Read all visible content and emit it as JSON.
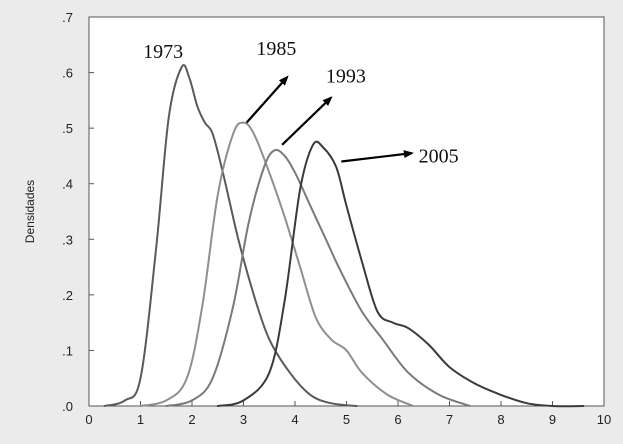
{
  "chart_data": {
    "type": "line",
    "title": "",
    "xlabel": "",
    "ylabel": "Densidades",
    "xlim": [
      0,
      10
    ],
    "ylim": [
      0,
      0.7
    ],
    "x_ticks": [
      "0",
      "1",
      "2",
      "3",
      "4",
      "5",
      "6",
      "7",
      "8",
      "9",
      "10"
    ],
    "y_ticks": [
      ".0",
      ".1",
      ".2",
      ".3",
      ".4",
      ".5",
      ".6",
      ".7"
    ],
    "grid": false,
    "legend": "none",
    "series": [
      {
        "name": "1973",
        "color": "#5a5a5a",
        "x": [
          0.3,
          0.7,
          1.0,
          1.3,
          1.55,
          1.8,
          1.95,
          2.1,
          2.25,
          2.4,
          2.6,
          2.9,
          3.2,
          3.5,
          3.9,
          4.3,
          4.7,
          5.2
        ],
        "y": [
          0.0,
          0.01,
          0.05,
          0.28,
          0.52,
          0.61,
          0.59,
          0.54,
          0.51,
          0.49,
          0.42,
          0.3,
          0.2,
          0.12,
          0.06,
          0.02,
          0.005,
          0.0
        ]
      },
      {
        "name": "1985",
        "color": "#8f8f8f",
        "x": [
          1.0,
          1.5,
          1.9,
          2.2,
          2.5,
          2.8,
          3.0,
          3.2,
          3.5,
          3.8,
          4.1,
          4.4,
          4.7,
          5.0,
          5.3,
          5.8,
          6.3
        ],
        "y": [
          0.0,
          0.01,
          0.05,
          0.18,
          0.38,
          0.49,
          0.51,
          0.49,
          0.42,
          0.34,
          0.25,
          0.16,
          0.12,
          0.1,
          0.06,
          0.02,
          0.0
        ]
      },
      {
        "name": "1993",
        "color": "#7a7a7a",
        "x": [
          1.5,
          2.0,
          2.4,
          2.8,
          3.1,
          3.4,
          3.6,
          3.8,
          4.0,
          4.3,
          4.6,
          4.9,
          5.3,
          5.7,
          6.2,
          6.8,
          7.4
        ],
        "y": [
          0.0,
          0.01,
          0.05,
          0.18,
          0.33,
          0.43,
          0.46,
          0.45,
          0.42,
          0.36,
          0.3,
          0.24,
          0.17,
          0.12,
          0.06,
          0.02,
          0.0
        ]
      },
      {
        "name": "2005",
        "color": "#3a3a3a",
        "x": [
          2.5,
          3.0,
          3.5,
          3.8,
          4.1,
          4.35,
          4.55,
          4.8,
          5.0,
          5.3,
          5.6,
          5.9,
          6.2,
          6.6,
          7.0,
          7.5,
          8.0,
          8.5,
          9.0,
          9.6
        ],
        "y": [
          0.0,
          0.01,
          0.06,
          0.19,
          0.39,
          0.47,
          0.465,
          0.43,
          0.36,
          0.26,
          0.17,
          0.15,
          0.14,
          0.11,
          0.07,
          0.04,
          0.02,
          0.005,
          0.0,
          0.0
        ]
      }
    ],
    "annotations": [
      {
        "text": "1973",
        "arrow": false,
        "x": 1.05,
        "y": 0.626
      },
      {
        "text": "1985",
        "arrow": true,
        "x": 3.25,
        "y": 0.632,
        "arrow_from": [
          3.06,
          0.51
        ],
        "arrow_to": [
          3.85,
          0.592
        ]
      },
      {
        "text": "1993",
        "arrow": true,
        "x": 4.6,
        "y": 0.582,
        "arrow_from": [
          3.75,
          0.47
        ],
        "arrow_to": [
          4.7,
          0.555
        ]
      },
      {
        "text": "2005",
        "arrow": true,
        "x": 6.4,
        "y": 0.438,
        "arrow_from": [
          4.9,
          0.44
        ],
        "arrow_to": [
          6.27,
          0.455
        ]
      }
    ]
  }
}
